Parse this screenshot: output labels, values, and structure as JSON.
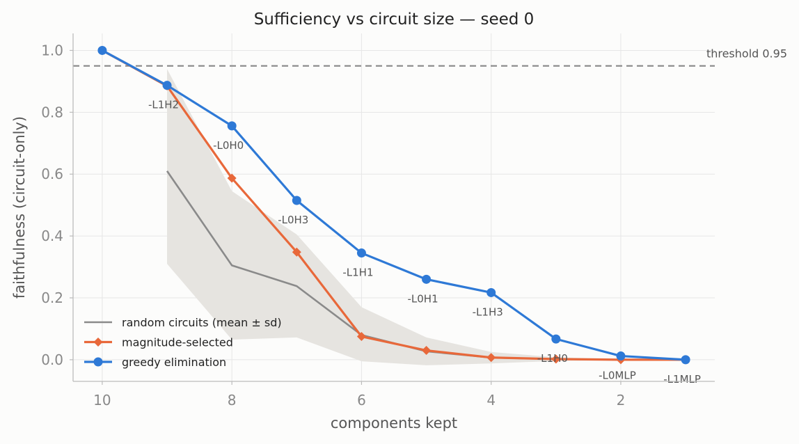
{
  "chart_data": {
    "type": "line",
    "title": "Sufficiency vs circuit size — seed 0",
    "xlabel": "components kept",
    "ylabel": "faithfulness (circuit-only)",
    "xlim": [
      10.45,
      0.55
    ],
    "ylim": [
      -0.07,
      1.055
    ],
    "x_reversed": true,
    "grid": true,
    "legend_position": "lower-left",
    "xticks": [
      10,
      8,
      6,
      4,
      2
    ],
    "xtick_labels": [
      "10",
      "8",
      "6",
      "4",
      "2"
    ],
    "yticks": [
      0.0,
      0.2,
      0.4,
      0.6,
      0.8,
      1.0
    ],
    "ytick_labels": [
      "0.0",
      "0.2",
      "0.4",
      "0.6",
      "0.8",
      "1.0"
    ],
    "threshold": {
      "value": 0.95,
      "label": "threshold 0.95",
      "color": "#888888"
    },
    "series": [
      {
        "name": "random circuits (mean ± sd)",
        "color": "#8a8a8a",
        "band_color": "#e6e4e0",
        "x": [
          9,
          8,
          7,
          6,
          5,
          4,
          3,
          2
        ],
        "y": [
          0.61,
          0.305,
          0.238,
          0.08,
          0.027,
          0.007,
          0.002,
          0.0
        ],
        "lower": [
          0.31,
          0.065,
          0.072,
          -0.005,
          -0.018,
          -0.012,
          -0.004,
          -0.002
        ],
        "upper": [
          0.94,
          0.545,
          0.405,
          0.17,
          0.072,
          0.025,
          0.008,
          0.003
        ]
      },
      {
        "name": "magnitude-selected",
        "color": "#e8683a",
        "marker": "diamond",
        "x": [
          10,
          9,
          8,
          7,
          6,
          5,
          4,
          3,
          2,
          1
        ],
        "y": [
          1.0,
          0.885,
          0.587,
          0.348,
          0.075,
          0.03,
          0.007,
          0.002,
          0.0,
          0.0
        ]
      },
      {
        "name": "greedy elimination",
        "color": "#2e79d6",
        "marker": "circle",
        "x": [
          10,
          9,
          8,
          7,
          6,
          5,
          4,
          3,
          2,
          1
        ],
        "y": [
          1.0,
          0.887,
          0.756,
          0.515,
          0.345,
          0.26,
          0.217,
          0.067,
          0.012,
          0.0
        ]
      }
    ],
    "annotations": [
      {
        "x": 9,
        "text": "-L1H2"
      },
      {
        "x": 8,
        "text": "-L0H0"
      },
      {
        "x": 7,
        "text": "-L0H3"
      },
      {
        "x": 6,
        "text": "-L1H1"
      },
      {
        "x": 5,
        "text": "-L0H1"
      },
      {
        "x": 4,
        "text": "-L1H3"
      },
      {
        "x": 3,
        "text": "-L1H0"
      },
      {
        "x": 2,
        "text": "-L0MLP"
      },
      {
        "x": 1,
        "text": "-L1MLP"
      }
    ]
  }
}
